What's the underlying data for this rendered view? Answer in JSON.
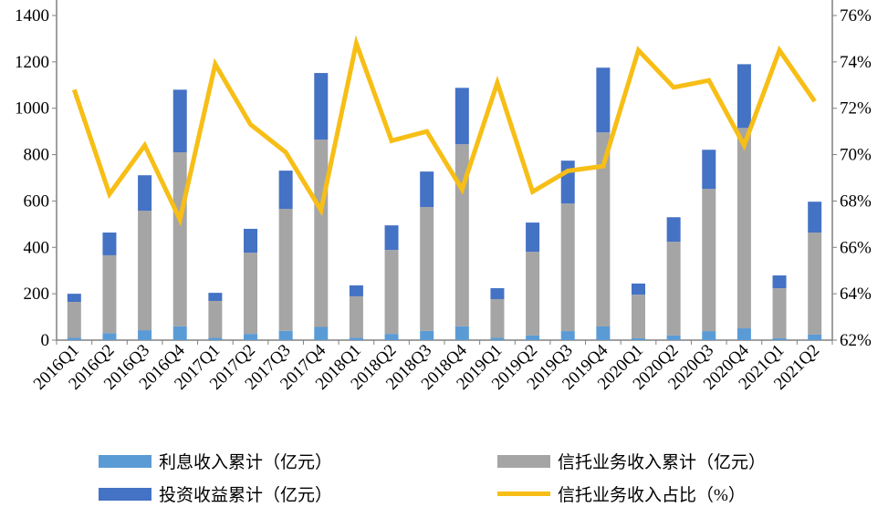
{
  "chart_data": {
    "type": "bar",
    "subtype": "stacked bar with line on secondary axis",
    "categories": [
      "2016Q1",
      "2016Q2",
      "2016Q3",
      "2016Q4",
      "2017Q1",
      "2017Q2",
      "2017Q3",
      "2017Q4",
      "2018Q1",
      "2018Q2",
      "2018Q3",
      "2018Q4",
      "2019Q1",
      "2019Q2",
      "2019Q3",
      "2019Q4",
      "2020Q1",
      "2020Q2",
      "2020Q3",
      "2020Q4",
      "2021Q1",
      "2021Q2"
    ],
    "series": [
      {
        "name": "利息收入累计（亿元）",
        "type": "bar",
        "axis": "left",
        "color": "#5B9BD5",
        "values": [
          10,
          30,
          43,
          60,
          10,
          27,
          40,
          57,
          10,
          27,
          40,
          60,
          10,
          20,
          39,
          59,
          8,
          20,
          39,
          51,
          8,
          24
        ]
      },
      {
        "name": "信托业务收入累计（亿元）",
        "type": "bar",
        "axis": "left",
        "color": "#A5A5A5",
        "values": [
          155,
          336,
          515,
          750,
          159,
          350,
          526,
          808,
          179,
          362,
          534,
          785,
          167,
          361,
          550,
          837,
          188,
          404,
          613,
          864,
          216,
          440
        ]
      },
      {
        "name": "投资收益累计（亿元）",
        "type": "bar",
        "axis": "left",
        "color": "#4472C4",
        "values": [
          35,
          98,
          153,
          270,
          35,
          103,
          165,
          287,
          47,
          106,
          153,
          243,
          47,
          126,
          185,
          279,
          48,
          106,
          169,
          275,
          55,
          133
        ]
      },
      {
        "name": "信托业务收入占比（%）",
        "type": "line",
        "axis": "right",
        "color": "#F7BE16",
        "values": [
          72.8,
          68.3,
          70.4,
          67.2,
          73.9,
          71.3,
          70.1,
          67.6,
          74.8,
          70.6,
          71.0,
          68.5,
          73.1,
          68.4,
          69.3,
          69.5,
          74.5,
          72.9,
          73.2,
          70.4,
          74.5,
          72.3
        ]
      }
    ],
    "y_left": {
      "range": [
        0,
        1400
      ],
      "ticks": [
        "0",
        "200",
        "400",
        "600",
        "800",
        "1000",
        "1200",
        "1400"
      ]
    },
    "y_right": {
      "range": [
        62,
        76
      ],
      "ticks": [
        "62%",
        "64%",
        "66%",
        "68%",
        "70%",
        "72%",
        "74%",
        "76%"
      ]
    },
    "grid": false,
    "legend_placement": "bottom"
  }
}
